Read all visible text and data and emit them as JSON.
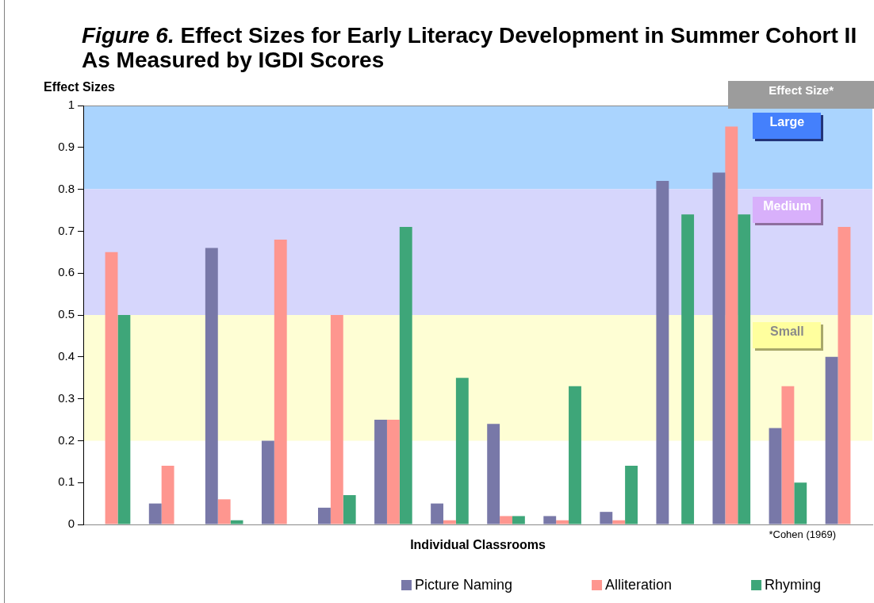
{
  "chart_data": {
    "type": "bar",
    "title": "Figure 6. Effect Sizes for Early Literacy Development in Summer Cohort II As Measured by IGDI Scores",
    "xlabel": "Individual Classrooms",
    "ylabel": "Effect Sizes",
    "categories": [
      null,
      null,
      null,
      null,
      null,
      null,
      null,
      null,
      null,
      null,
      null,
      null,
      null,
      null
    ],
    "series": [
      {
        "name": "Picture Naming",
        "color": "#7878a8",
        "values": [
          null,
          0.05,
          0.66,
          0.2,
          0.04,
          0.25,
          0.05,
          0.24,
          0.02,
          0.03,
          0.82,
          0.84,
          0.23,
          0.4
        ]
      },
      {
        "name": "Alliteration",
        "color": "#fe968f",
        "values": [
          0.65,
          0.14,
          0.06,
          0.68,
          0.5,
          0.25,
          0.01,
          0.02,
          0.01,
          0.01,
          null,
          0.95,
          0.33,
          0.71
        ]
      },
      {
        "name": "Rhyming",
        "color": "#3ea679",
        "values": [
          0.5,
          null,
          0.01,
          null,
          0.07,
          0.71,
          0.35,
          0.02,
          0.33,
          0.14,
          0.74,
          0.74,
          0.1,
          null
        ]
      }
    ],
    "ylim": [
      0,
      1
    ],
    "yticks": [
      0,
      0.1,
      0.2,
      0.3,
      0.4,
      0.5,
      0.6,
      0.7,
      0.8,
      0.9,
      1
    ],
    "bands": [
      {
        "axis": "y",
        "from": 0.8,
        "to": 1,
        "label": "Large",
        "color": "#aad4fe"
      },
      {
        "axis": "y",
        "from": 0.5,
        "to": 0.8,
        "label": "Medium",
        "color": "#d6d6fc"
      },
      {
        "axis": "y",
        "from": 0.2,
        "to": 0.5,
        "label": "Small",
        "color": "#fefed4"
      }
    ],
    "annotations": [
      "Effect Size*",
      "*Cohen (1969)"
    ],
    "legend": "bottom"
  }
}
